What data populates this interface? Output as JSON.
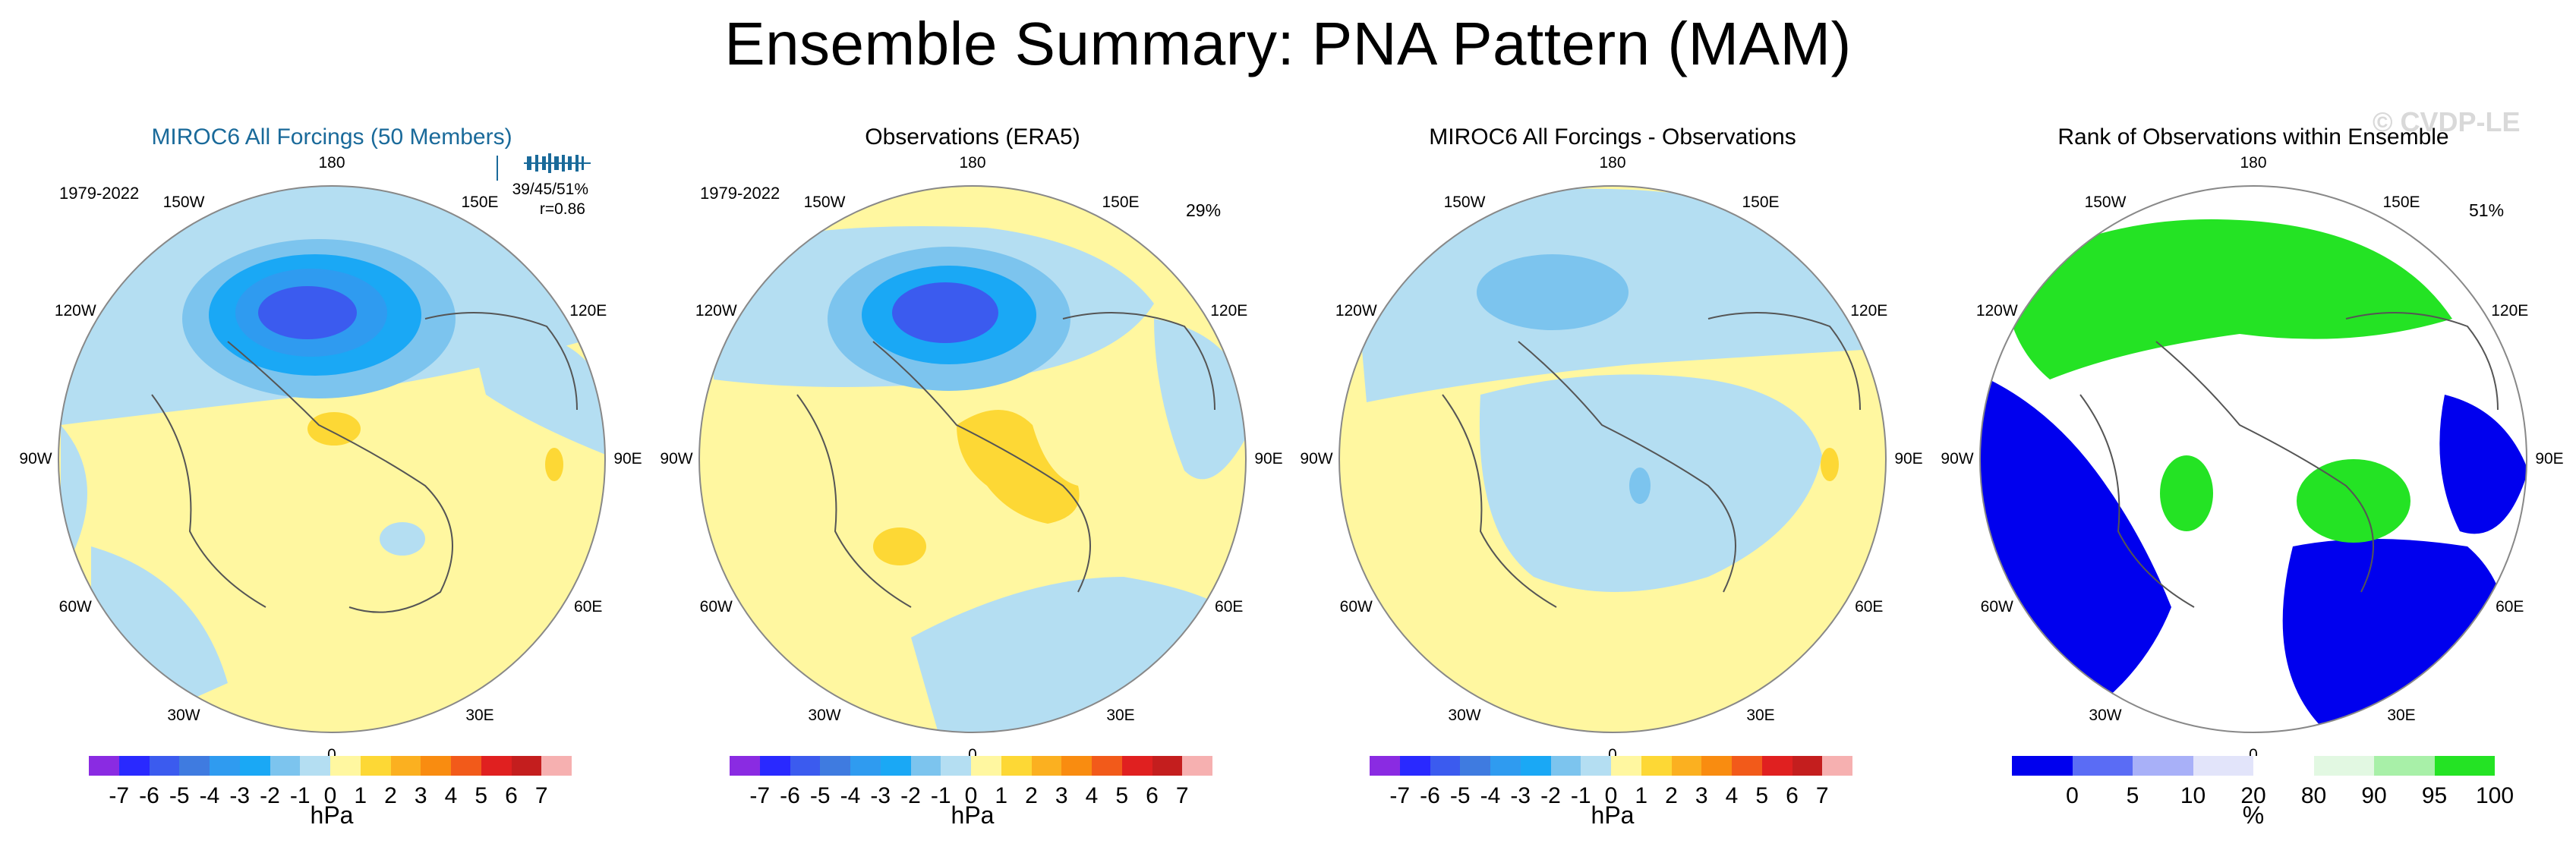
{
  "title": "Ensemble Summary: PNA Pattern (MAM)",
  "watermark": "© CVDP-LE",
  "chart_data": [
    {
      "type": "heatmap",
      "projection": "north polar stereographic",
      "title": "MIROC6 All Forcings (50 Members)",
      "period": "1979-2022",
      "stats_line1": "39/45/51%",
      "stats_line2": "r=0.86",
      "longitude_labels": [
        "180",
        "150E",
        "120E",
        "90E",
        "60E",
        "30E",
        "0",
        "30W",
        "60W",
        "90W",
        "120W",
        "150W"
      ],
      "features": [
        {
          "name": "north-pacific-low",
          "min": -5,
          "max": -1
        },
        {
          "name": "arctic-positive",
          "min": 0,
          "max": 1
        },
        {
          "name": "north-atlantic-positive",
          "min": 0,
          "max": 1
        }
      ],
      "colorbar_label": "hPa"
    },
    {
      "type": "heatmap",
      "projection": "north polar stereographic",
      "title": "Observations (ERA5)",
      "period": "1979-2022",
      "percent": "29%",
      "longitude_labels": [
        "180",
        "150E",
        "120E",
        "90E",
        "60E",
        "30E",
        "0",
        "30W",
        "60W",
        "90W",
        "120W",
        "150W"
      ],
      "features": [
        {
          "name": "north-pacific-low",
          "min": -4,
          "max": -1
        },
        {
          "name": "arctic-positive",
          "min": 0,
          "max": 2
        },
        {
          "name": "north-atlantic-positive",
          "min": 0,
          "max": 2
        }
      ],
      "colorbar_label": "hPa"
    },
    {
      "type": "heatmap",
      "projection": "north polar stereographic",
      "title": "MIROC6 All Forcings - Observations",
      "longitude_labels": [
        "180",
        "150E",
        "120E",
        "90E",
        "60E",
        "30E",
        "0",
        "30W",
        "60W",
        "90W",
        "120W",
        "150W"
      ],
      "features": [
        {
          "name": "north-pacific-difference",
          "min": -2,
          "max": -1
        },
        {
          "name": "arctic-difference",
          "min": -1,
          "max": 0
        }
      ],
      "colorbar_label": "hPa"
    },
    {
      "type": "heatmap",
      "projection": "north polar stereographic",
      "title": "Rank of Observations within Ensemble",
      "percent": "51%",
      "longitude_labels": [
        "180",
        "150E",
        "120E",
        "90E",
        "60E",
        "30E",
        "0",
        "30W",
        "60W",
        "90W",
        "120W",
        "150W"
      ],
      "colorbar_label": "%"
    }
  ],
  "colorbar_hpa": {
    "tick_labels": [
      "-7",
      "-6",
      "-5",
      "-4",
      "-3",
      "-2",
      "-1",
      "0",
      "1",
      "2",
      "3",
      "4",
      "5",
      "6",
      "7"
    ],
    "colors": [
      "#8a2be2",
      "#2929ff",
      "#3b5bef",
      "#3f7be0",
      "#2f9bf0",
      "#1aa8f5",
      "#7cc4ee",
      "#b4def2",
      "#fff7a0",
      "#fdd835",
      "#fbb020",
      "#f98c10",
      "#f25a1a",
      "#e02020",
      "#c41e1e",
      "#f6b0b0"
    ]
  },
  "colorbar_rank": {
    "tick_labels": [
      "0",
      "5",
      "10",
      "20",
      "80",
      "90",
      "95",
      "100"
    ],
    "colors": [
      "#0000ee",
      "#5a6cf5",
      "#a8b0f8",
      "#e2e4fa",
      "#ffffff",
      "#e2f8e2",
      "#a8f0a8",
      "#24e324"
    ]
  }
}
